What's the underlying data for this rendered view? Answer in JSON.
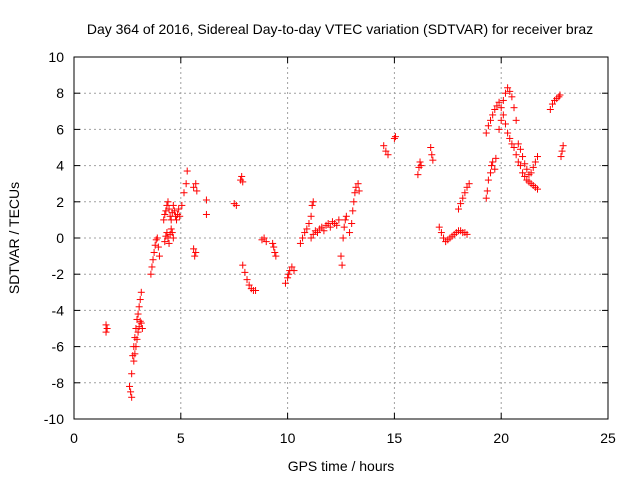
{
  "chart_data": {
    "type": "scatter",
    "title": "Day 364 of 2016, Sidereal Day-to-day VTEC variation (SDTVAR) for receiver braz",
    "xlabel": "GPS time / hours",
    "ylabel": "SDTVAR / TECUs",
    "xlim": [
      0,
      25
    ],
    "ylim": [
      -10,
      10
    ],
    "xticks": [
      0,
      5,
      10,
      15,
      20,
      25
    ],
    "yticks": [
      -10,
      -8,
      -6,
      -4,
      -2,
      0,
      2,
      4,
      6,
      8,
      10
    ],
    "grid": true,
    "marker": "plus",
    "color": "#ff0000",
    "segments": [
      [
        [
          1.5,
          -5.2
        ],
        [
          1.5,
          -4.8
        ],
        [
          1.55,
          -5.0
        ]
      ],
      [
        [
          2.6,
          -8.2
        ],
        [
          2.65,
          -8.5
        ],
        [
          2.7,
          -8.8
        ],
        [
          2.7,
          -7.5
        ],
        [
          2.75,
          -6.5
        ],
        [
          2.8,
          -6.0
        ],
        [
          2.85,
          -5.5
        ],
        [
          2.9,
          -5.0
        ],
        [
          2.95,
          -4.5
        ],
        [
          3.0,
          -4.2
        ],
        [
          3.05,
          -3.8
        ],
        [
          3.1,
          -3.4
        ],
        [
          3.15,
          -3.0
        ]
      ],
      [
        [
          2.8,
          -6.8
        ],
        [
          2.85,
          -6.4
        ],
        [
          2.9,
          -6.0
        ],
        [
          2.95,
          -5.6
        ],
        [
          3.0,
          -5.2
        ],
        [
          3.05,
          -4.9
        ],
        [
          3.1,
          -4.6
        ],
        [
          3.15,
          -4.7
        ],
        [
          3.2,
          -5.0
        ]
      ],
      [
        [
          3.6,
          -2.0
        ],
        [
          3.65,
          -1.6
        ],
        [
          3.7,
          -1.2
        ],
        [
          3.75,
          -0.8
        ],
        [
          3.8,
          -0.4
        ],
        [
          3.85,
          -0.1
        ],
        [
          3.9,
          0.0
        ],
        [
          3.95,
          -0.5
        ],
        [
          4.0,
          -1.0
        ]
      ],
      [
        [
          4.2,
          1.0
        ],
        [
          4.25,
          1.3
        ],
        [
          4.3,
          1.5
        ],
        [
          4.35,
          1.8
        ],
        [
          4.4,
          2.0
        ],
        [
          4.45,
          1.6
        ],
        [
          4.5,
          1.2
        ],
        [
          4.55,
          1.0
        ],
        [
          4.6,
          1.4
        ],
        [
          4.65,
          1.8
        ],
        [
          4.7,
          1.5
        ],
        [
          4.75,
          1.2
        ],
        [
          4.8,
          1.0
        ],
        [
          4.85,
          1.3
        ],
        [
          4.9,
          1.6
        ],
        [
          4.95,
          1.2
        ]
      ],
      [
        [
          4.25,
          -0.2
        ],
        [
          4.3,
          0.1
        ],
        [
          4.35,
          0.3
        ],
        [
          4.4,
          0.0
        ],
        [
          4.45,
          -0.3
        ],
        [
          4.5,
          0.2
        ],
        [
          4.55,
          0.5
        ],
        [
          4.6,
          0.3
        ],
        [
          4.65,
          0.0
        ]
      ],
      [
        [
          5.05,
          1.8
        ],
        [
          5.15,
          2.5
        ],
        [
          5.25,
          3.0
        ],
        [
          5.3,
          3.7
        ]
      ],
      [
        [
          5.6,
          2.8
        ],
        [
          5.7,
          3.0
        ],
        [
          5.75,
          2.6
        ]
      ],
      [
        [
          5.6,
          -0.6
        ],
        [
          5.65,
          -1.0
        ],
        [
          5.7,
          -0.8
        ]
      ],
      [
        [
          6.2,
          2.1
        ],
        [
          6.2,
          1.3
        ]
      ],
      [
        [
          7.5,
          1.9
        ],
        [
          7.6,
          1.8
        ]
      ],
      [
        [
          7.8,
          3.2
        ],
        [
          7.85,
          3.4
        ],
        [
          7.9,
          3.1
        ]
      ],
      [
        [
          7.9,
          -1.5
        ],
        [
          8.0,
          -1.9
        ],
        [
          8.1,
          -2.3
        ],
        [
          8.2,
          -2.6
        ],
        [
          8.3,
          -2.8
        ],
        [
          8.4,
          -2.9
        ],
        [
          8.5,
          -2.9
        ]
      ],
      [
        [
          8.8,
          -0.1
        ],
        [
          8.9,
          0.0
        ],
        [
          9.0,
          -0.2
        ]
      ],
      [
        [
          9.3,
          -0.3
        ],
        [
          9.35,
          -0.5
        ],
        [
          9.4,
          -0.8
        ],
        [
          9.45,
          -1.0
        ]
      ],
      [
        [
          9.9,
          -2.5
        ],
        [
          10.0,
          -2.2
        ],
        [
          10.05,
          -2.0
        ],
        [
          10.1,
          -1.8
        ],
        [
          10.2,
          -1.6
        ],
        [
          10.3,
          -1.8
        ]
      ],
      [
        [
          10.6,
          -0.3
        ],
        [
          10.7,
          0.0
        ],
        [
          10.8,
          0.3
        ],
        [
          10.9,
          0.5
        ],
        [
          11.0,
          0.8
        ],
        [
          11.1,
          1.2
        ],
        [
          11.15,
          1.8
        ],
        [
          11.2,
          2.0
        ]
      ],
      [
        [
          11.1,
          0.0
        ],
        [
          11.2,
          0.2
        ],
        [
          11.3,
          0.4
        ],
        [
          11.4,
          0.3
        ],
        [
          11.5,
          0.5
        ],
        [
          11.6,
          0.6
        ],
        [
          11.7,
          0.4
        ],
        [
          11.8,
          0.7
        ],
        [
          11.9,
          0.8
        ],
        [
          12.0,
          0.6
        ],
        [
          12.1,
          0.9
        ],
        [
          12.2,
          0.8
        ],
        [
          12.3,
          0.7
        ],
        [
          12.4,
          1.0
        ]
      ],
      [
        [
          12.5,
          -1.0
        ],
        [
          12.55,
          -1.5
        ],
        [
          12.6,
          0.0
        ],
        [
          12.65,
          0.6
        ],
        [
          12.7,
          1.0
        ],
        [
          12.75,
          1.2
        ]
      ],
      [
        [
          12.9,
          0.3
        ],
        [
          13.0,
          0.8
        ],
        [
          13.05,
          1.5
        ],
        [
          13.1,
          2.0
        ],
        [
          13.15,
          2.5
        ],
        [
          13.2,
          2.8
        ],
        [
          13.3,
          3.0
        ],
        [
          13.35,
          2.6
        ]
      ],
      [
        [
          14.5,
          5.1
        ],
        [
          14.6,
          4.8
        ],
        [
          14.7,
          4.6
        ]
      ],
      [
        [
          15.0,
          5.5
        ],
        [
          15.05,
          5.6
        ]
      ],
      [
        [
          16.1,
          3.5
        ],
        [
          16.15,
          3.9
        ],
        [
          16.2,
          4.2
        ],
        [
          16.25,
          4.0
        ]
      ],
      [
        [
          16.7,
          5.0
        ],
        [
          16.75,
          4.6
        ],
        [
          16.8,
          4.3
        ]
      ],
      [
        [
          17.1,
          0.6
        ],
        [
          17.2,
          0.3
        ],
        [
          17.3,
          0.0
        ],
        [
          17.4,
          -0.2
        ],
        [
          17.5,
          -0.1
        ],
        [
          17.6,
          0.0
        ],
        [
          17.7,
          0.1
        ],
        [
          17.8,
          0.2
        ],
        [
          17.9,
          0.3
        ],
        [
          18.0,
          0.4
        ],
        [
          18.1,
          0.4
        ],
        [
          18.2,
          0.3
        ],
        [
          18.3,
          0.3
        ],
        [
          18.4,
          0.2
        ]
      ],
      [
        [
          18.0,
          1.6
        ],
        [
          18.1,
          1.9
        ],
        [
          18.2,
          2.2
        ],
        [
          18.3,
          2.5
        ],
        [
          18.4,
          2.8
        ],
        [
          18.5,
          3.0
        ]
      ],
      [
        [
          19.3,
          2.2
        ],
        [
          19.35,
          2.6
        ],
        [
          19.4,
          3.2
        ],
        [
          19.5,
          3.6
        ],
        [
          19.55,
          4.0
        ],
        [
          19.6,
          4.2
        ],
        [
          19.7,
          3.8
        ],
        [
          19.75,
          4.4
        ]
      ],
      [
        [
          19.3,
          5.8
        ],
        [
          19.4,
          6.2
        ],
        [
          19.5,
          6.5
        ],
        [
          19.6,
          6.8
        ],
        [
          19.7,
          7.1
        ],
        [
          19.8,
          7.3
        ],
        [
          19.9,
          7.5
        ],
        [
          20.0,
          7.2
        ],
        [
          20.1,
          7.6
        ],
        [
          20.2,
          8.0
        ],
        [
          20.3,
          8.3
        ],
        [
          20.4,
          8.1
        ],
        [
          20.5,
          7.8
        ],
        [
          20.6,
          7.2
        ],
        [
          20.7,
          6.5
        ]
      ],
      [
        [
          19.9,
          6.0
        ],
        [
          20.0,
          6.5
        ],
        [
          20.1,
          6.8
        ],
        [
          20.2,
          6.3
        ],
        [
          20.3,
          5.8
        ],
        [
          20.4,
          5.5
        ],
        [
          20.5,
          5.2
        ],
        [
          20.6,
          5.0
        ],
        [
          20.7,
          4.6
        ],
        [
          20.8,
          4.2
        ],
        [
          20.9,
          4.0
        ],
        [
          21.0,
          3.6
        ],
        [
          21.1,
          3.4
        ],
        [
          21.2,
          3.2
        ],
        [
          21.3,
          3.1
        ],
        [
          21.4,
          3.0
        ],
        [
          21.5,
          2.9
        ],
        [
          21.6,
          2.8
        ],
        [
          21.7,
          2.7
        ]
      ],
      [
        [
          20.8,
          5.2
        ],
        [
          20.9,
          4.9
        ],
        [
          21.0,
          4.5
        ],
        [
          21.1,
          4.1
        ],
        [
          21.2,
          3.8
        ],
        [
          21.3,
          3.5
        ],
        [
          21.4,
          3.6
        ],
        [
          21.5,
          3.9
        ],
        [
          21.6,
          4.2
        ],
        [
          21.7,
          4.5
        ]
      ],
      [
        [
          22.3,
          7.1
        ],
        [
          22.4,
          7.4
        ],
        [
          22.5,
          7.6
        ],
        [
          22.6,
          7.7
        ],
        [
          22.7,
          7.8
        ],
        [
          22.75,
          7.9
        ]
      ],
      [
        [
          22.8,
          4.5
        ],
        [
          22.85,
          4.8
        ],
        [
          22.9,
          5.1
        ]
      ]
    ]
  }
}
